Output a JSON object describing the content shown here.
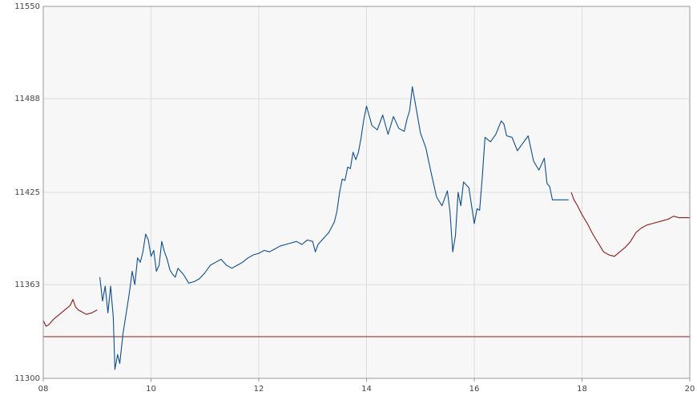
{
  "chart_data": {
    "type": "line",
    "title": "",
    "xlabel": "",
    "ylabel": "",
    "xlim": [
      8,
      20
    ],
    "ylim": [
      11300,
      11550
    ],
    "x_ticks": [
      8,
      10,
      12,
      14,
      16,
      18,
      20
    ],
    "x_tick_labels": [
      "08",
      "10",
      "12",
      "14",
      "16",
      "18",
      "20"
    ],
    "y_ticks": [
      11300,
      11363,
      11425,
      11488,
      11550
    ],
    "y_tick_labels": [
      "11300",
      "11363",
      "11425",
      "11488",
      "11550"
    ],
    "grid": true,
    "reference_line": {
      "y": 11328,
      "color": "#8b1a1a"
    },
    "series": [
      {
        "color": "#8b1a1a",
        "x": [
          8.0,
          8.05,
          8.1,
          8.2,
          8.3,
          8.4,
          8.5,
          8.55,
          8.6,
          8.65,
          8.7,
          8.8,
          8.9,
          9.0
        ],
        "y": [
          11339,
          11335,
          11336,
          11340,
          11343,
          11346,
          11349,
          11353,
          11348,
          11346,
          11345,
          11343,
          11344,
          11346
        ]
      },
      {
        "color": "#0d4f8b",
        "x": [
          9.05,
          9.1,
          9.15,
          9.2,
          9.25,
          9.3,
          9.33,
          9.38,
          9.42,
          9.48,
          9.55,
          9.6,
          9.65,
          9.7,
          9.75,
          9.8,
          9.85,
          9.9,
          9.95,
          10.0,
          10.05,
          10.1,
          10.15,
          10.2,
          10.25,
          10.3,
          10.35,
          10.4,
          10.45,
          10.5,
          10.6,
          10.7,
          10.8,
          10.9,
          11.0,
          11.1,
          11.2,
          11.3,
          11.4,
          11.5,
          11.6,
          11.7,
          11.8,
          11.9,
          12.0,
          12.1,
          12.2,
          12.3,
          12.4,
          12.5,
          12.6,
          12.7,
          12.8,
          12.9,
          13.0,
          13.05,
          13.1,
          13.2,
          13.3,
          13.4,
          13.45,
          13.5,
          13.55,
          13.6,
          13.65,
          13.7,
          13.75,
          13.8,
          13.85,
          13.9,
          13.95,
          14.0,
          14.1,
          14.2,
          14.3,
          14.4,
          14.5,
          14.6,
          14.7,
          14.75,
          14.8,
          14.85,
          14.9,
          15.0,
          15.1,
          15.2,
          15.3,
          15.4,
          15.5,
          15.55,
          15.6,
          15.65,
          15.7,
          15.75,
          15.8,
          15.9,
          16.0,
          16.05,
          16.1,
          16.15,
          16.2,
          16.3,
          16.4,
          16.5,
          16.55,
          16.6,
          16.7,
          16.8,
          16.9,
          17.0,
          17.1,
          17.2,
          17.3,
          17.35,
          17.4,
          17.45,
          17.5,
          17.6,
          17.7,
          17.75
        ],
        "y": [
          11368,
          11352,
          11362,
          11344,
          11362,
          11341,
          11306,
          11316,
          11310,
          11330,
          11346,
          11358,
          11372,
          11363,
          11381,
          11378,
          11385,
          11397,
          11393,
          11382,
          11386,
          11372,
          11376,
          11392,
          11385,
          11380,
          11373,
          11370,
          11368,
          11374,
          11370,
          11364,
          11365,
          11367,
          11371,
          11376,
          11378,
          11380,
          11376,
          11374,
          11376,
          11378,
          11381,
          11383,
          11384,
          11386,
          11385,
          11387,
          11389,
          11390,
          11391,
          11392,
          11390,
          11393,
          11392,
          11385,
          11390,
          11394,
          11398,
          11405,
          11412,
          11425,
          11434,
          11433,
          11442,
          11441,
          11452,
          11447,
          11452,
          11462,
          11474,
          11483,
          11470,
          11467,
          11477,
          11464,
          11476,
          11468,
          11466,
          11474,
          11480,
          11496,
          11486,
          11465,
          11455,
          11438,
          11422,
          11416,
          11426,
          11412,
          11385,
          11396,
          11425,
          11416,
          11432,
          11428,
          11404,
          11414,
          11413,
          11436,
          11462,
          11459,
          11464,
          11473,
          11471,
          11463,
          11462,
          11453,
          11458,
          11463,
          11446,
          11440,
          11448,
          11431,
          11429,
          11420,
          11420,
          11420,
          11420,
          11420
        ]
      },
      {
        "color": "#8b1a1a",
        "x": [
          17.8,
          17.85,
          17.9,
          18.0,
          18.1,
          18.2,
          18.3,
          18.4,
          18.5,
          18.6,
          18.7,
          18.8,
          18.9,
          19.0,
          19.1,
          19.2,
          19.3,
          19.4,
          19.5,
          19.6,
          19.7,
          19.8,
          19.9,
          20.0
        ],
        "y": [
          11425,
          11420,
          11417,
          11410,
          11404,
          11397,
          11391,
          11385,
          11383,
          11382,
          11385,
          11388,
          11392,
          11398,
          11401,
          11403,
          11404,
          11405,
          11406,
          11407,
          11409,
          11408,
          11408,
          11408
        ]
      }
    ]
  }
}
